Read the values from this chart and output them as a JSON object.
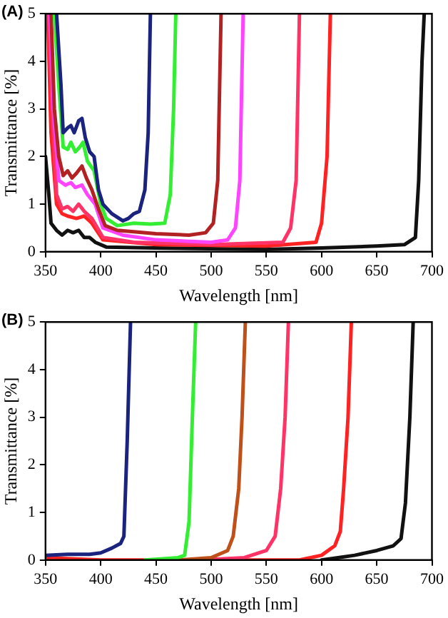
{
  "chart_data": [
    {
      "type": "line",
      "xlabel": "Wavelength [nm]",
      "ylabel": "Transmittance [%]",
      "annotations": [
        "(A)"
      ],
      "xlim": [
        350,
        700
      ],
      "xticks": [
        350,
        400,
        450,
        500,
        550,
        600,
        650,
        700
      ],
      "ylim": [
        0,
        5
      ],
      "yticks": [
        0,
        1,
        2,
        3,
        4,
        5
      ],
      "grid": false,
      "legend": false,
      "marker": "none",
      "line_style": "solid",
      "series": [
        {
          "color": "#1a237e",
          "x": [
            360,
            364,
            366,
            370,
            373,
            376,
            380,
            383,
            386,
            390,
            394,
            398,
            402,
            410,
            420,
            425,
            430,
            435,
            440,
            443,
            445
          ],
          "values": [
            5,
            3.5,
            2.5,
            2.6,
            2.65,
            2.5,
            2.75,
            2.8,
            2.4,
            2.1,
            2.0,
            1.3,
            1.0,
            0.8,
            0.65,
            0.7,
            0.8,
            0.85,
            1.3,
            2.5,
            5
          ]
        },
        {
          "color": "#33ee33",
          "x": [
            358,
            362,
            366,
            370,
            373,
            377,
            381,
            384,
            388,
            394,
            400,
            405,
            415,
            430,
            445,
            458,
            463,
            466,
            468
          ],
          "values": [
            5,
            3.5,
            2.2,
            2.15,
            2.3,
            2.1,
            2.2,
            2.3,
            1.9,
            1.7,
            1.0,
            0.7,
            0.55,
            0.6,
            0.58,
            0.6,
            1.2,
            3,
            5
          ]
        },
        {
          "color": "#b22222",
          "x": [
            355,
            358,
            362,
            366,
            370,
            374,
            378,
            383,
            387,
            392,
            398,
            404,
            415,
            430,
            450,
            480,
            495,
            502,
            506,
            509
          ],
          "values": [
            5,
            3,
            2.0,
            1.6,
            1.7,
            1.55,
            1.65,
            1.8,
            1.55,
            1.3,
            0.9,
            0.55,
            0.45,
            0.42,
            0.38,
            0.35,
            0.4,
            0.6,
            1.5,
            5
          ]
        },
        {
          "color": "#ff44ff",
          "x": [
            354,
            357,
            362,
            368,
            373,
            377,
            383,
            388,
            395,
            402,
            420,
            450,
            500,
            515,
            522,
            526,
            529
          ],
          "values": [
            5,
            3,
            1.5,
            1.4,
            1.45,
            1.35,
            1.4,
            1.2,
            1.0,
            0.5,
            0.35,
            0.25,
            0.2,
            0.25,
            0.5,
            1.5,
            5
          ]
        },
        {
          "color": "#ff3366",
          "x": [
            353,
            356,
            360,
            365,
            370,
            375,
            380,
            385,
            392,
            402,
            430,
            500,
            565,
            572,
            577,
            580
          ],
          "values": [
            5,
            3,
            1.2,
            0.9,
            0.95,
            0.85,
            1.0,
            0.85,
            0.7,
            0.3,
            0.2,
            0.15,
            0.2,
            0.5,
            1.5,
            5
          ]
        },
        {
          "color": "#ff2222",
          "x": [
            352,
            355,
            360,
            365,
            370,
            378,
            385,
            392,
            402,
            450,
            550,
            595,
            600,
            605,
            608
          ],
          "values": [
            5,
            2.5,
            1.0,
            0.8,
            0.75,
            0.7,
            0.75,
            0.6,
            0.25,
            0.15,
            0.12,
            0.2,
            0.6,
            2,
            5
          ]
        },
        {
          "color": "#111111",
          "x": [
            350,
            353,
            355,
            360,
            365,
            370,
            375,
            380,
            385,
            390,
            395,
            405,
            450,
            550,
            600,
            650,
            675,
            685,
            688,
            691,
            693
          ],
          "values": [
            2.0,
            1.2,
            0.6,
            0.45,
            0.35,
            0.45,
            0.4,
            0.45,
            0.3,
            0.3,
            0.2,
            0.1,
            0.08,
            0.05,
            0.08,
            0.12,
            0.15,
            0.3,
            1.5,
            4,
            5
          ]
        }
      ]
    },
    {
      "type": "line",
      "xlabel": "Wavelength [nm]",
      "ylabel": "Transmittance [%]",
      "annotations": [
        "(B)"
      ],
      "xlim": [
        350,
        700
      ],
      "xticks": [
        350,
        400,
        450,
        500,
        550,
        600,
        650,
        700
      ],
      "ylim": [
        0,
        5
      ],
      "yticks": [
        0,
        1,
        2,
        3,
        4,
        5
      ],
      "grid": false,
      "legend": false,
      "marker": "none",
      "line_style": "solid",
      "series": [
        {
          "color": "#1a237e",
          "x": [
            350,
            370,
            390,
            400,
            410,
            418,
            421,
            424,
            427
          ],
          "values": [
            0.1,
            0.12,
            0.12,
            0.15,
            0.25,
            0.35,
            0.5,
            2.5,
            5
          ]
        },
        {
          "color": "#33ee33",
          "x": [
            440,
            470,
            476,
            480,
            483,
            486
          ],
          "values": [
            0,
            0.05,
            0.1,
            0.8,
            3,
            5
          ]
        },
        {
          "color": "#c0501a",
          "x": [
            470,
            500,
            515,
            520,
            525,
            528,
            531
          ],
          "values": [
            0,
            0.05,
            0.2,
            0.5,
            1.5,
            3,
            5
          ]
        },
        {
          "color": "#ff3366",
          "x": [
            490,
            530,
            550,
            558,
            563,
            567,
            570
          ],
          "values": [
            0,
            0.05,
            0.2,
            0.5,
            1.5,
            3,
            5
          ]
        },
        {
          "color": "#ff2222",
          "x": [
            350,
            400,
            580,
            600,
            612,
            617,
            620,
            624,
            627
          ],
          "values": [
            0.05,
            0,
            0,
            0.1,
            0.3,
            0.6,
            1.5,
            3,
            5
          ]
        },
        {
          "color": "#111111",
          "x": [
            600,
            630,
            650,
            665,
            672,
            676,
            680,
            683
          ],
          "values": [
            0,
            0.1,
            0.2,
            0.3,
            0.45,
            1.2,
            3,
            5
          ]
        }
      ]
    }
  ]
}
